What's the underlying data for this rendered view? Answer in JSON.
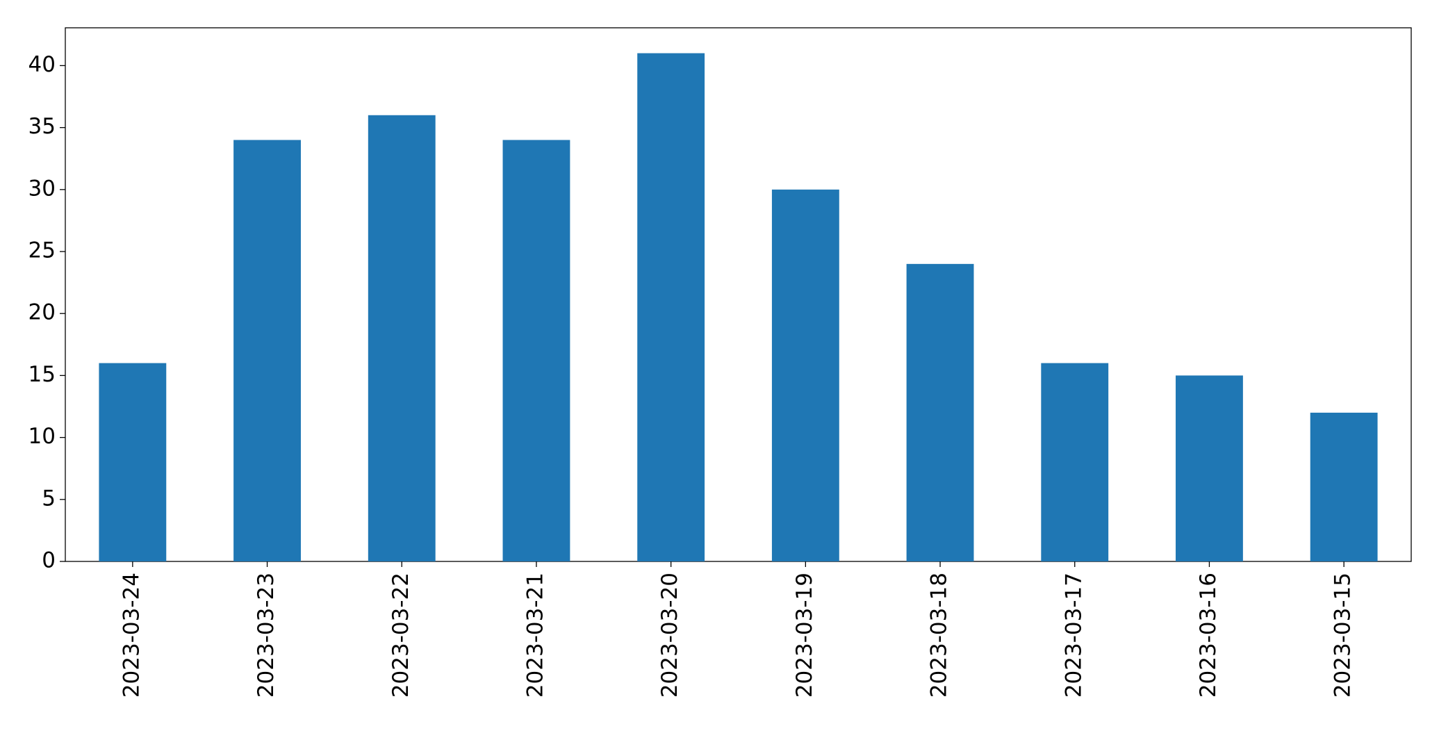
{
  "chart_data": {
    "type": "bar",
    "categories": [
      "2023-03-24",
      "2023-03-23",
      "2023-03-22",
      "2023-03-21",
      "2023-03-20",
      "2023-03-19",
      "2023-03-18",
      "2023-03-17",
      "2023-03-16",
      "2023-03-15"
    ],
    "values": [
      16,
      34,
      36,
      34,
      41,
      30,
      24,
      16,
      15,
      12
    ],
    "color": "#1f77b4",
    "ylim": [
      0,
      43.05
    ],
    "yticks": [
      0,
      5,
      10,
      15,
      20,
      25,
      30,
      35,
      40
    ],
    "grid": false
  }
}
